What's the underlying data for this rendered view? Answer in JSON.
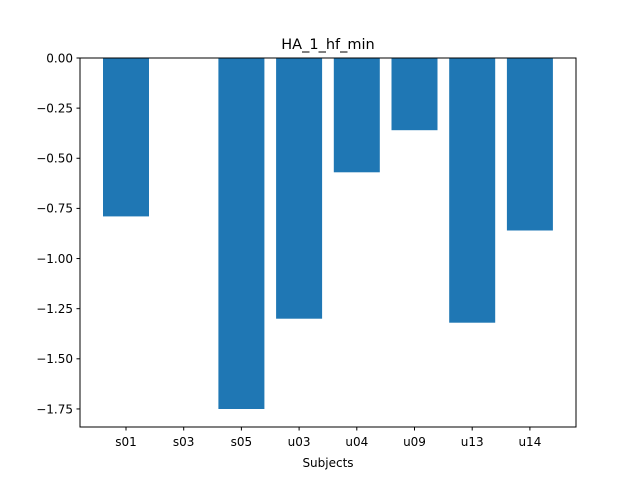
{
  "chart_data": {
    "type": "bar",
    "title": "HA_1_hf_min",
    "xlabel": "Subjects",
    "ylabel": "",
    "categories": [
      "s01",
      "s03",
      "s05",
      "u03",
      "u04",
      "u09",
      "u13",
      "u14"
    ],
    "values": [
      -0.79,
      0.0,
      -1.75,
      -1.3,
      -0.57,
      -0.36,
      -1.32,
      -0.86
    ],
    "ylim": [
      -1.84,
      0.0
    ],
    "yticks": [
      0.0,
      -0.25,
      -0.5,
      -0.75,
      -1.0,
      -1.25,
      -1.5,
      -1.75
    ],
    "ytick_labels": [
      "0.00",
      "−0.25",
      "−0.50",
      "−0.75",
      "−1.00",
      "−1.25",
      "−1.50",
      "−1.75"
    ],
    "bar_color": "#1f77b4",
    "grid": false,
    "legend": "none"
  }
}
